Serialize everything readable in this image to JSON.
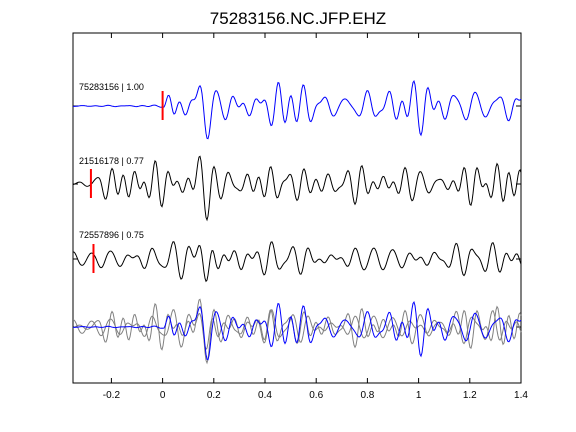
{
  "chart_data": {
    "type": "line",
    "title": "75283156.NC.JFP.EHZ",
    "xlabel": "",
    "ylabel": "",
    "xlim": [
      -0.35,
      1.4
    ],
    "x_ticks": [
      -0.2,
      0,
      0.2,
      0.4,
      0.6,
      0.8,
      1,
      1.2,
      1.4
    ],
    "x_tick_labels": [
      "-0.2",
      "0",
      "0.2",
      "0.4",
      "0.6",
      "0.8",
      "1",
      "1.2",
      "1.4"
    ],
    "grid": false,
    "colors": {
      "master": "#0000ff",
      "other": "#000000",
      "overlay_other": "#808080",
      "pick": "#ff0000"
    },
    "traces": [
      {
        "label": "75283156 | 1.00",
        "id": "75283156",
        "cc": 1.0,
        "color": "#0000ff",
        "pick_time": 0.0
      },
      {
        "label": "21516178 | 0.77",
        "id": "21516178",
        "cc": 0.77,
        "color": "#000000",
        "pick_time": -0.28
      },
      {
        "label": "72557896 | 0.75",
        "id": "72557896",
        "cc": 0.75,
        "color": "#000000",
        "pick_time": -0.27
      }
    ],
    "overlay": {
      "series": [
        "75283156",
        "21516178",
        "72557896"
      ]
    }
  }
}
